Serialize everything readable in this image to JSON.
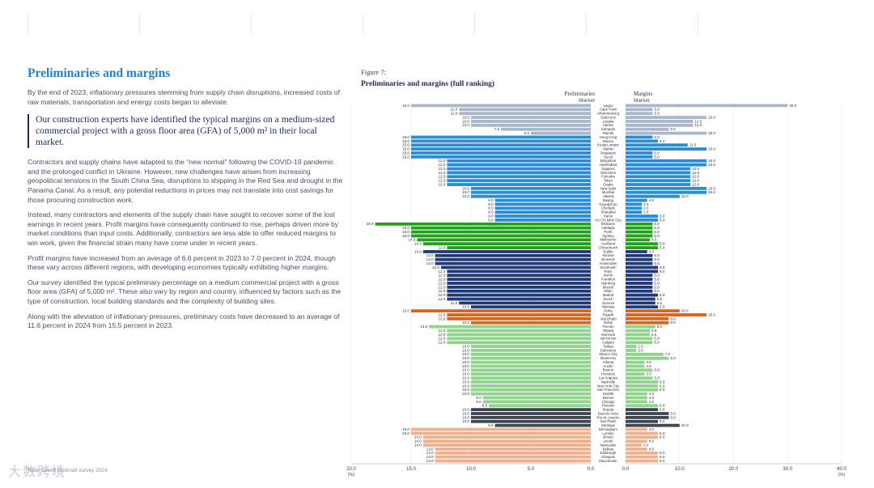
{
  "left": {
    "title": "Preliminaries and margins",
    "intro": "By the end of 2023, inflationary pressures stemming from supply chain disruptions, increased costs of raw materials, transportation and energy costs began to alleviate.",
    "callout": "Our construction experts have identified the typical margins on a medium-sized commercial project with a gross floor area (GFA) of 5,000 m² in their local market.",
    "paragraphs": [
      "Contractors and supply chains have adapted to the “new normal” following the COVID-19 pandemic and the prolonged conflict in Ukraine. However, new challenges have arisen from increasing geopolitical tensions in the South China Sea, disruptions to shipping in the Red Sea and drought in the Panama Canal. As a result, any potential reductions in prices may not translate into cost savings for those procuring construction work.",
      "Instead, many contractors and elements of the supply chain have sought to recover some of the lost earnings in recent years. Profit margins have consequently continued to rise, perhaps driven more by market conditions than input costs. Additionally, contractors are less able to offer reduced margins to win work, given the financial strain many have come under in recent years.",
      "Profit margins have increased from an average of 6.6 percent in 2023 to 7.0 percent in 2024, though these vary across different regions, with developing economies typically exhibiting higher margins.",
      "Our survey identified the typical preliminary percentage on a medium commercial project with a gross floor area (GFA) of 5,000 m². These also vary by region and country, influenced by factors such as the type of construction, local building standards and the complexity of building sites.",
      "Along with the alleviation of inflationary pressures, preliminary costs have decreased to an average of 11.6 percent in 2024 from 15.5 percent in 2023."
    ]
  },
  "footer": "Rider Levett Bucknall survey 2024",
  "watermark": "大数跨境",
  "figure": {
    "number": "Figure 7:",
    "title": "Preliminaries and margins (full ranking)",
    "prelim_header": "Preliminaries",
    "margin_header": "Margins",
    "market_label": "Market"
  },
  "chart_data": {
    "type": "bar",
    "title": "Preliminaries and margins (full ranking)",
    "series": [
      {
        "name": "Preliminaries",
        "axis": "left"
      },
      {
        "name": "Margins",
        "axis": "right"
      }
    ],
    "prelim_xlim": [
      20,
      0
    ],
    "margin_xlim": [
      0,
      40
    ],
    "prelim_ticks": [
      "20.0\n(%)",
      "15.0",
      "10.0",
      "5.0",
      "0.0"
    ],
    "margin_ticks": [
      "0.0",
      "10.0",
      "20.0",
      "30.0",
      "40.0\n(%)"
    ],
    "region_colors": {
      "africa": "#a9b7cc",
      "asia": "#2b8bd6",
      "oceania": "#21a21a",
      "europe": "#1f3a78",
      "middleeast": "#d8641f",
      "northamerica": "#8fd48a",
      "southamerica": "#3e4651",
      "uk": "#efb08c"
    },
    "rows": [
      {
        "market": "Lagos",
        "region": "africa",
        "prelim": 15.0,
        "margin": 30.0
      },
      {
        "market": "Cape Town",
        "region": "africa",
        "prelim": 11.0,
        "margin": 5.0
      },
      {
        "market": "Johannesburg",
        "region": "africa",
        "prelim": 11.0,
        "margin": 5.0
      },
      {
        "market": "Gaborone",
        "region": "africa",
        "prelim": 10.0,
        "margin": 15.0
      },
      {
        "market": "Lusaka",
        "region": "africa",
        "prelim": 10.0,
        "margin": 12.5
      },
      {
        "market": "Harare",
        "region": "africa",
        "prelim": 10.0,
        "margin": 12.5
      },
      {
        "market": "Kampala",
        "region": "africa",
        "prelim": 7.5,
        "margin": 8.0
      },
      {
        "market": "Nairobi",
        "region": "africa",
        "prelim": 5.0,
        "margin": 15.0
      },
      {
        "market": "Hong Kong",
        "region": "asia",
        "prelim": 15.0,
        "margin": 5.0
      },
      {
        "market": "Macau",
        "region": "asia",
        "prelim": 15.0,
        "margin": 6.0
      },
      {
        "market": "Kuala Lumpur",
        "region": "asia",
        "prelim": 15.0,
        "margin": 11.5
      },
      {
        "market": "Manila",
        "region": "asia",
        "prelim": 15.0,
        "margin": 15.0
      },
      {
        "market": "Singapore",
        "region": "asia",
        "prelim": 15.0,
        "margin": 5.0
      },
      {
        "market": "Seoul",
        "region": "asia",
        "prelim": 15.0,
        "margin": 5.0
      },
      {
        "market": "Bangalore",
        "region": "asia",
        "prelim": 12.0,
        "margin": 15.0
      },
      {
        "market": "Hyderabad",
        "region": "asia",
        "prelim": 12.0,
        "margin": 15.0
      },
      {
        "market": "Sapporo",
        "region": "asia",
        "prelim": 12.0,
        "margin": 12.0
      },
      {
        "market": "Shenzhen",
        "region": "asia",
        "prelim": 12.0,
        "margin": 12.0
      },
      {
        "market": "Fukuoka",
        "region": "asia",
        "prelim": 12.0,
        "margin": 12.0
      },
      {
        "market": "Tokyo",
        "region": "asia",
        "prelim": 12.0,
        "margin": 12.0
      },
      {
        "market": "Osaka",
        "region": "asia",
        "prelim": 12.0,
        "margin": 12.0
      },
      {
        "market": "New Delhi",
        "region": "asia",
        "prelim": 10.0,
        "margin": 15.0
      },
      {
        "market": "Mumbai",
        "region": "asia",
        "prelim": 10.0,
        "margin": 15.0
      },
      {
        "market": "Jakarta",
        "region": "asia",
        "prelim": 10.0,
        "margin": 10.0
      },
      {
        "market": "Beijing",
        "region": "asia",
        "prelim": 8.0,
        "margin": 4.0
      },
      {
        "market": "Guangzhou",
        "region": "asia",
        "prelim": 8.0,
        "margin": 3.0
      },
      {
        "market": "Chengdu",
        "region": "asia",
        "prelim": 8.0,
        "margin": 3.0
      },
      {
        "market": "Shanghai",
        "region": "asia",
        "prelim": 8.0,
        "margin": 3.0
      },
      {
        "market": "Hanoi",
        "region": "asia",
        "prelim": 8.0,
        "margin": 6.0
      },
      {
        "market": "Ho Chi Minh City",
        "region": "asia",
        "prelim": 8.0,
        "margin": 6.0
      },
      {
        "market": "Brisbane",
        "region": "oceania",
        "prelim": 18.0,
        "margin": 5.0
      },
      {
        "market": "Adelaide",
        "region": "oceania",
        "prelim": 15.0,
        "margin": 5.0
      },
      {
        "market": "Perth",
        "region": "oceania",
        "prelim": 15.0,
        "margin": 5.0
      },
      {
        "market": "Sydney",
        "region": "oceania",
        "prelim": 15.0,
        "margin": 5.0
      },
      {
        "market": "Melbourne",
        "region": "oceania",
        "prelim": 14.5,
        "margin": 4.5
      },
      {
        "market": "Auckland",
        "region": "oceania",
        "prelim": 14.0,
        "margin": 6.0
      },
      {
        "market": "Christchurch",
        "region": "oceania",
        "prelim": 12.0,
        "margin": 6.0
      },
      {
        "market": "Dublin",
        "region": "europe",
        "prelim": 14.0,
        "margin": 4.0
      },
      {
        "market": "Nicosia",
        "region": "europe",
        "prelim": 13.0,
        "margin": 5.0
      },
      {
        "market": "Brussels",
        "region": "europe",
        "prelim": 13.0,
        "margin": 5.0
      },
      {
        "market": "Amsterdam",
        "region": "europe",
        "prelim": 13.0,
        "margin": 5.0
      },
      {
        "market": "Stockholm",
        "region": "europe",
        "prelim": 12.5,
        "margin": 6.0
      },
      {
        "market": "Paris",
        "region": "europe",
        "prelim": 12.0,
        "margin": 6.0
      },
      {
        "market": "Berlin",
        "region": "europe",
        "prelim": 12.0,
        "margin": 5.0
      },
      {
        "market": "Frankfurt",
        "region": "europe",
        "prelim": 12.0,
        "margin": 5.0
      },
      {
        "market": "Hamburg",
        "region": "europe",
        "prelim": 12.0,
        "margin": 5.0
      },
      {
        "market": "Munich",
        "region": "europe",
        "prelim": 12.0,
        "margin": 5.0
      },
      {
        "market": "Milan",
        "region": "europe",
        "prelim": 12.0,
        "margin": 5.0
      },
      {
        "market": "Madrid",
        "region": "europe",
        "prelim": 12.0,
        "margin": 6.0
      },
      {
        "market": "Zurich",
        "region": "europe",
        "prelim": 12.0,
        "margin": 5.5
      },
      {
        "market": "Geneva",
        "region": "europe",
        "prelim": 11.0,
        "margin": 5.5
      },
      {
        "market": "Warsaw",
        "region": "europe",
        "prelim": 10.0,
        "margin": 6.0
      },
      {
        "market": "Doha",
        "region": "middleeast",
        "prelim": 15.0,
        "margin": 10.0
      },
      {
        "market": "Riyadh",
        "region": "middleeast",
        "prelim": 12.0,
        "margin": 15.0
      },
      {
        "market": "Abu Dhabi",
        "region": "middleeast",
        "prelim": 12.0,
        "margin": 8.0
      },
      {
        "market": "Dubai",
        "region": "middleeast",
        "prelim": 10.0,
        "margin": 8.0
      },
      {
        "market": "Toronto",
        "region": "northamerica",
        "prelim": 13.5,
        "margin": 5.5
      },
      {
        "market": "Ottawa",
        "region": "northamerica",
        "prelim": 12.0,
        "margin": 4.5
      },
      {
        "market": "Montreal",
        "region": "northamerica",
        "prelim": 12.0,
        "margin": 4.5
      },
      {
        "market": "Vancouver",
        "region": "northamerica",
        "prelim": 12.0,
        "margin": 5.0
      },
      {
        "market": "Calgary",
        "region": "northamerica",
        "prelim": 12.0,
        "margin": 5.0
      },
      {
        "market": "Tampa",
        "region": "northamerica",
        "prelim": 10.0,
        "margin": 2.0
      },
      {
        "market": "Edmonton",
        "region": "northamerica",
        "prelim": 10.0,
        "margin": 2.0
      },
      {
        "market": "Mexico City",
        "region": "northamerica",
        "prelim": 10.0,
        "margin": 7.0
      },
      {
        "market": "Monterrey",
        "region": "northamerica",
        "prelim": 10.0,
        "margin": 8.0
      },
      {
        "market": "Atlanta",
        "region": "northamerica",
        "prelim": 10.0,
        "margin": 3.5
      },
      {
        "market": "Austin",
        "region": "northamerica",
        "prelim": 10.0,
        "margin": 3.5
      },
      {
        "market": "Boston",
        "region": "northamerica",
        "prelim": 10.0,
        "margin": 5.0
      },
      {
        "market": "Honolulu",
        "region": "northamerica",
        "prelim": 10.0,
        "margin": 3.5
      },
      {
        "market": "Los Angeles",
        "region": "northamerica",
        "prelim": 10.0,
        "margin": 5.0
      },
      {
        "market": "Nashville",
        "region": "northamerica",
        "prelim": 10.0,
        "margin": 6.0
      },
      {
        "market": "New York City",
        "region": "northamerica",
        "prelim": 10.0,
        "margin": 6.0
      },
      {
        "market": "San Francisco",
        "region": "northamerica",
        "prelim": 10.0,
        "margin": 6.0
      },
      {
        "market": "Seattle",
        "region": "northamerica",
        "prelim": 10.0,
        "margin": 4.0
      },
      {
        "market": "Denver",
        "region": "northamerica",
        "prelim": 9.0,
        "margin": 4.0
      },
      {
        "market": "Chicago",
        "region": "northamerica",
        "prelim": 9.0,
        "margin": 4.0
      },
      {
        "market": "Phoenix",
        "region": "northamerica",
        "prelim": 8.5,
        "margin": 6.0
      },
      {
        "market": "Bogota",
        "region": "southamerica",
        "prelim": 10.0,
        "margin": 6.0
      },
      {
        "market": "Buenos Aires",
        "region": "southamerica",
        "prelim": 10.0,
        "margin": 8.0
      },
      {
        "market": "Rio de Janeiro",
        "region": "southamerica",
        "prelim": 10.0,
        "margin": 8.0
      },
      {
        "market": "Sao Paulo",
        "region": "southamerica",
        "prelim": 10.0,
        "margin": 6.0
      },
      {
        "market": "Santiago",
        "region": "southamerica",
        "prelim": 8.0,
        "margin": 10.0
      },
      {
        "market": "Birmingham",
        "region": "uk",
        "prelim": 15.0,
        "margin": 4.0
      },
      {
        "market": "London",
        "region": "uk",
        "prelim": 15.0,
        "margin": 6.0
      },
      {
        "market": "Bristol",
        "region": "uk",
        "prelim": 14.0,
        "margin": 6.0
      },
      {
        "market": "Leeds",
        "region": "uk",
        "prelim": 14.0,
        "margin": 4.0
      },
      {
        "market": "Newcastle",
        "region": "uk",
        "prelim": 14.0,
        "margin": 3.0
      },
      {
        "market": "Belfast",
        "region": "uk",
        "prelim": 13.0,
        "margin": 4.0
      },
      {
        "market": "Edinburgh",
        "region": "uk",
        "prelim": 13.0,
        "margin": 6.0
      },
      {
        "market": "Glasgow",
        "region": "uk",
        "prelim": 13.0,
        "margin": 6.0
      },
      {
        "market": "Manchester",
        "region": "uk",
        "prelim": 13.0,
        "margin": 6.0
      }
    ]
  }
}
